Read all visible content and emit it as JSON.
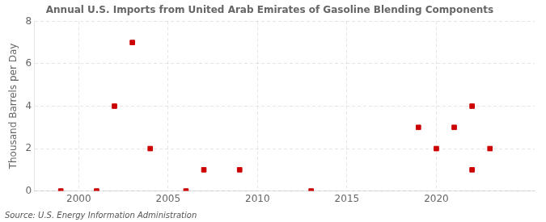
{
  "chart_data": {
    "type": "scatter",
    "title": "Annual U.S. Imports from United Arab Emirates of Gasoline Blending Components",
    "ylabel": "Thousand Barrels per Day",
    "annotations": [
      "Source: U.S. Energy Information Administration"
    ],
    "x": [
      1999,
      2001,
      2002,
      2003,
      2004,
      2006,
      2007,
      2009,
      2013,
      2019,
      2020,
      2021,
      2022,
      2022,
      2023
    ],
    "values": [
      0,
      0,
      4,
      7,
      2,
      0,
      1,
      1,
      0,
      3,
      2,
      3,
      4,
      1,
      2
    ],
    "color": "#cc0000",
    "marker": "square",
    "xlim": [
      1997.5,
      2025.5
    ],
    "xticks": [
      2000,
      2005,
      2010,
      2015,
      2020
    ],
    "ylim": [
      0,
      8
    ],
    "yticks": [
      0,
      2,
      4,
      6,
      8
    ],
    "grid": true
  }
}
